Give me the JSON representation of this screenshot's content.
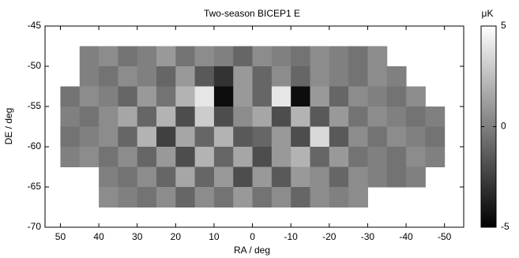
{
  "chart_data": {
    "type": "heatmap",
    "title": "Two-season BICEP1 E",
    "x_label": "RA / deg",
    "y_label": "DE / deg",
    "colorbar_label": "μK",
    "xlim": [
      54,
      -55
    ],
    "ylim": [
      -70,
      -45
    ],
    "xticks": [
      50,
      40,
      30,
      20,
      10,
      0,
      -10,
      -20,
      -30,
      -40,
      -50
    ],
    "yticks": [
      -45,
      -50,
      -55,
      -60,
      -65,
      -70
    ],
    "clim": [
      -5,
      5
    ],
    "cticks": [
      5,
      0,
      -5
    ],
    "colormap": "gray",
    "xbins": [
      50,
      45,
      40,
      35,
      30,
      25,
      20,
      15,
      10,
      5,
      0,
      -5,
      -10,
      -15,
      -20,
      -25,
      -30,
      -35,
      -40,
      -45,
      -50
    ],
    "ybins": [
      -47.5,
      -50,
      -52.5,
      -55,
      -57.5,
      -60,
      -62.5,
      -65,
      -67.5
    ],
    "z": [
      [
        null,
        0,
        0.5,
        -0.5,
        0,
        1,
        -0.5,
        0.5,
        0,
        -1,
        0.5,
        0,
        -0.5,
        0.5,
        0,
        -0.5,
        0.5,
        null,
        null,
        null
      ],
      [
        null,
        0,
        -0.5,
        0.5,
        0,
        -1,
        1,
        -1.5,
        -3,
        1,
        -1,
        0.5,
        -1,
        0.5,
        0,
        -0.5,
        0.5,
        0,
        null,
        null
      ],
      [
        -0.5,
        0.5,
        0,
        -1,
        1,
        -0.5,
        2,
        4,
        -4.5,
        1,
        -1,
        4,
        -4.5,
        1,
        -1,
        0.5,
        0,
        -0.5,
        0.5,
        null
      ],
      [
        0,
        -0.5,
        0.5,
        1.5,
        -1,
        2,
        -2,
        3,
        -2,
        0.5,
        1.5,
        -2,
        2,
        -1.5,
        1,
        -0.5,
        0.5,
        0,
        -0.5,
        0
      ],
      [
        -0.5,
        0,
        0.5,
        -1,
        2,
        -2.5,
        1.5,
        -1,
        2,
        -1.5,
        -1,
        1,
        -2,
        3.5,
        -1.5,
        0.5,
        -0.5,
        0.5,
        0,
        -0.5
      ],
      [
        0,
        0.5,
        -0.5,
        0.5,
        -1,
        1,
        -2,
        2,
        -1,
        1.5,
        -2,
        1,
        2,
        -1,
        1,
        -0.5,
        0,
        -0.5,
        0.5,
        0
      ],
      [
        null,
        null,
        0,
        -0.5,
        0.5,
        -1,
        1.5,
        -1,
        1,
        -2,
        1,
        -1.5,
        1,
        0.5,
        -1,
        0.5,
        0,
        -0.5,
        0,
        null
      ],
      [
        null,
        null,
        0.5,
        0,
        -0.5,
        0.5,
        -1,
        0.5,
        -0.5,
        1,
        -0.5,
        0.5,
        -1,
        0.5,
        0,
        0.5,
        null,
        null,
        null,
        null
      ]
    ]
  }
}
